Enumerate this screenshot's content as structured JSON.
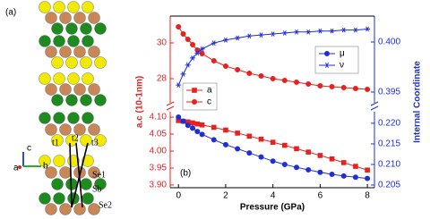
{
  "panel_a": {
    "label": "(a)",
    "atoms": [
      "t1",
      "t2",
      "t3",
      "Se1",
      "Sb",
      "Se2"
    ],
    "axes": [
      "c",
      "a",
      "b"
    ]
  },
  "chart_data": [
    {
      "type": "line",
      "x": [
        0,
        0.2,
        0.4,
        0.6,
        0.8,
        1,
        1.5,
        2,
        2.5,
        3,
        3.5,
        4,
        4.5,
        5,
        5.5,
        6,
        6.5,
        7,
        7.5,
        8
      ],
      "xlim": [
        -0.35,
        8.3
      ],
      "ylim": [
        26.65,
        31.5
      ],
      "yticks": [
        28,
        30
      ],
      "y2lim": [
        0.39393,
        0.40259
      ],
      "y2ticks": [
        0.395,
        {
          "value": 0.4,
          "label": "0.400"
        }
      ],
      "series": [
        {
          "name": "c",
          "color": "#e8201f",
          "marker": "circle",
          "values": [
            30.9,
            30.5,
            30.2,
            29.9,
            29.6,
            29.4,
            29.0,
            28.7,
            28.5,
            28.3,
            28.15,
            28.0,
            27.9,
            27.8,
            27.7,
            27.6,
            27.55,
            27.5,
            27.45,
            27.4
          ]
        },
        {
          "name": "ν",
          "color": "#1f2fd8",
          "marker": "star",
          "axis": "y2",
          "values": [
            0.3957,
            0.3968,
            0.3977,
            0.3984,
            0.3989,
            0.3993,
            0.3999,
            0.4002,
            0.4004,
            0.4006,
            0.4007,
            0.4008,
            0.4009,
            0.401,
            0.401,
            0.4011,
            0.4011,
            0.4012,
            0.4012,
            0.4013
          ]
        }
      ]
    },
    {
      "type": "line",
      "x": [
        0,
        0.2,
        0.4,
        0.6,
        0.8,
        1,
        1.5,
        2,
        2.5,
        3,
        3.5,
        4,
        4.5,
        5,
        5.5,
        6,
        6.5,
        7,
        7.5,
        8
      ],
      "xlim": [
        -0.35,
        8.3
      ],
      "xticks": [
        0,
        2,
        4,
        6,
        8
      ],
      "xlabel": "Pressure (GPa)",
      "ylabel": "a.c (10-1nm)",
      "y2label": "Internal Coordinate",
      "panel_label": "(b)",
      "ylim": [
        3.892,
        4.116
      ],
      "yticks": [
        {
          "value": 3.9,
          "label": "3.90"
        },
        3.95,
        {
          "value": 4.0,
          "label": "4.00"
        },
        4.05,
        {
          "value": 4.1,
          "label": "4.10"
        }
      ],
      "y2lim": [
        0.20435,
        0.2228
      ],
      "y2ticks": [
        0.205,
        {
          "value": 0.21,
          "label": "0.210"
        },
        0.215,
        {
          "value": 0.22,
          "label": "0.220"
        }
      ],
      "series": [
        {
          "name": "a",
          "color": "#e8201f",
          "marker": "square",
          "values": [
            4.09,
            4.088,
            4.086,
            4.083,
            4.08,
            4.077,
            4.07,
            4.062,
            4.053,
            4.044,
            4.035,
            4.026,
            4.017,
            4.007,
            3.997,
            3.987,
            3.977,
            3.966,
            3.955,
            3.944
          ]
        },
        {
          "name": "μ",
          "color": "#1f2fd8",
          "marker": "circle",
          "axis": "y2",
          "values": [
            0.2215,
            0.2205,
            0.2195,
            0.2188,
            0.218,
            0.2173,
            0.216,
            0.2148,
            0.2138,
            0.2128,
            0.2118,
            0.2108,
            0.21,
            0.2093,
            0.2087,
            0.2081,
            0.2076,
            0.2072,
            0.2069,
            0.2066
          ]
        }
      ]
    }
  ]
}
